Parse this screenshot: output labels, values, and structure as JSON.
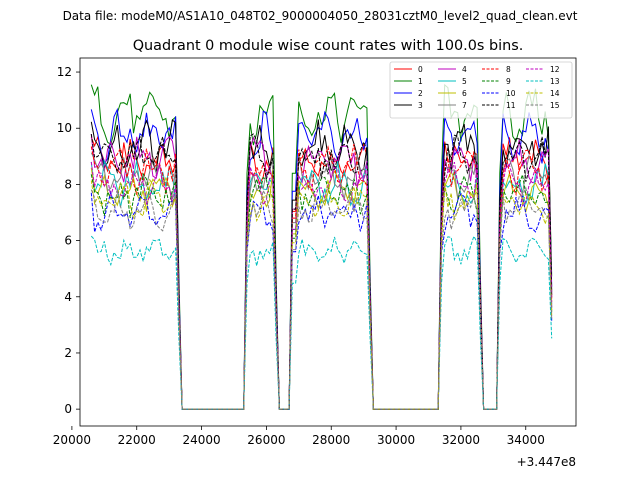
{
  "suptitle": "Data file: modeM0/AS1A10_048T02_9000004050_28031cztM0_level2_quad_clean.evt",
  "chart_data": {
    "type": "line",
    "title": "Quadrant 0 module wise count rates with 100.0s bins.",
    "xlabel": "",
    "ylabel": "",
    "x_offset_label": "+3.447e8",
    "xlim": [
      20250,
      35550
    ],
    "ylim": [
      -0.6,
      12.5
    ],
    "xticks": [
      20000,
      22000,
      24000,
      26000,
      28000,
      30000,
      32000,
      34000
    ],
    "yticks": [
      0,
      2,
      4,
      6,
      8,
      10,
      12
    ],
    "xtick_labels": [
      "20000",
      "22000",
      "24000",
      "26000",
      "28000",
      "30000",
      "32000",
      "34000"
    ],
    "ytick_labels": [
      "0",
      "2",
      "4",
      "6",
      "8",
      "10",
      "12"
    ],
    "legend_position": "top-right",
    "segments": [
      {
        "start": 20600,
        "end": 23300
      },
      {
        "start": 25400,
        "end": 26300
      },
      {
        "start": 26800,
        "end": 29200
      },
      {
        "start": 31400,
        "end": 32600
      },
      {
        "start": 33200,
        "end": 34800
      }
    ],
    "gap_value": 0,
    "series": [
      {
        "name": "0",
        "color": "#ff0000",
        "dash": "solid",
        "level": 8.8
      },
      {
        "name": "1",
        "color": "#008000",
        "dash": "solid",
        "level": 10.5
      },
      {
        "name": "2",
        "color": "#0000ff",
        "dash": "solid",
        "level": 9.7
      },
      {
        "name": "3",
        "color": "#000000",
        "dash": "solid",
        "level": 9.3
      },
      {
        "name": "4",
        "color": "#bf00bf",
        "dash": "solid",
        "level": 8.9
      },
      {
        "name": "5",
        "color": "#00bfbf",
        "dash": "solid",
        "level": 8.0
      },
      {
        "name": "6",
        "color": "#bfbf00",
        "dash": "solid",
        "level": 7.8
      },
      {
        "name": "7",
        "color": "#808080",
        "dash": "solid",
        "level": 8.3
      },
      {
        "name": "8",
        "color": "#ff0000",
        "dash": "dashed",
        "level": 8.5
      },
      {
        "name": "9",
        "color": "#008000",
        "dash": "dashed",
        "level": 7.6
      },
      {
        "name": "10",
        "color": "#0000ff",
        "dash": "dashed",
        "level": 7.0
      },
      {
        "name": "11",
        "color": "#000000",
        "dash": "dashed",
        "level": 8.9
      },
      {
        "name": "12",
        "color": "#bf00bf",
        "dash": "dashed",
        "level": 8.0
      },
      {
        "name": "13",
        "color": "#00bfbf",
        "dash": "dashed",
        "level": 5.6
      },
      {
        "name": "14",
        "color": "#bfbf00",
        "dash": "dashed",
        "level": 7.4
      },
      {
        "name": "15",
        "color": "#808080",
        "dash": "dashed",
        "level": 7.1
      }
    ]
  }
}
